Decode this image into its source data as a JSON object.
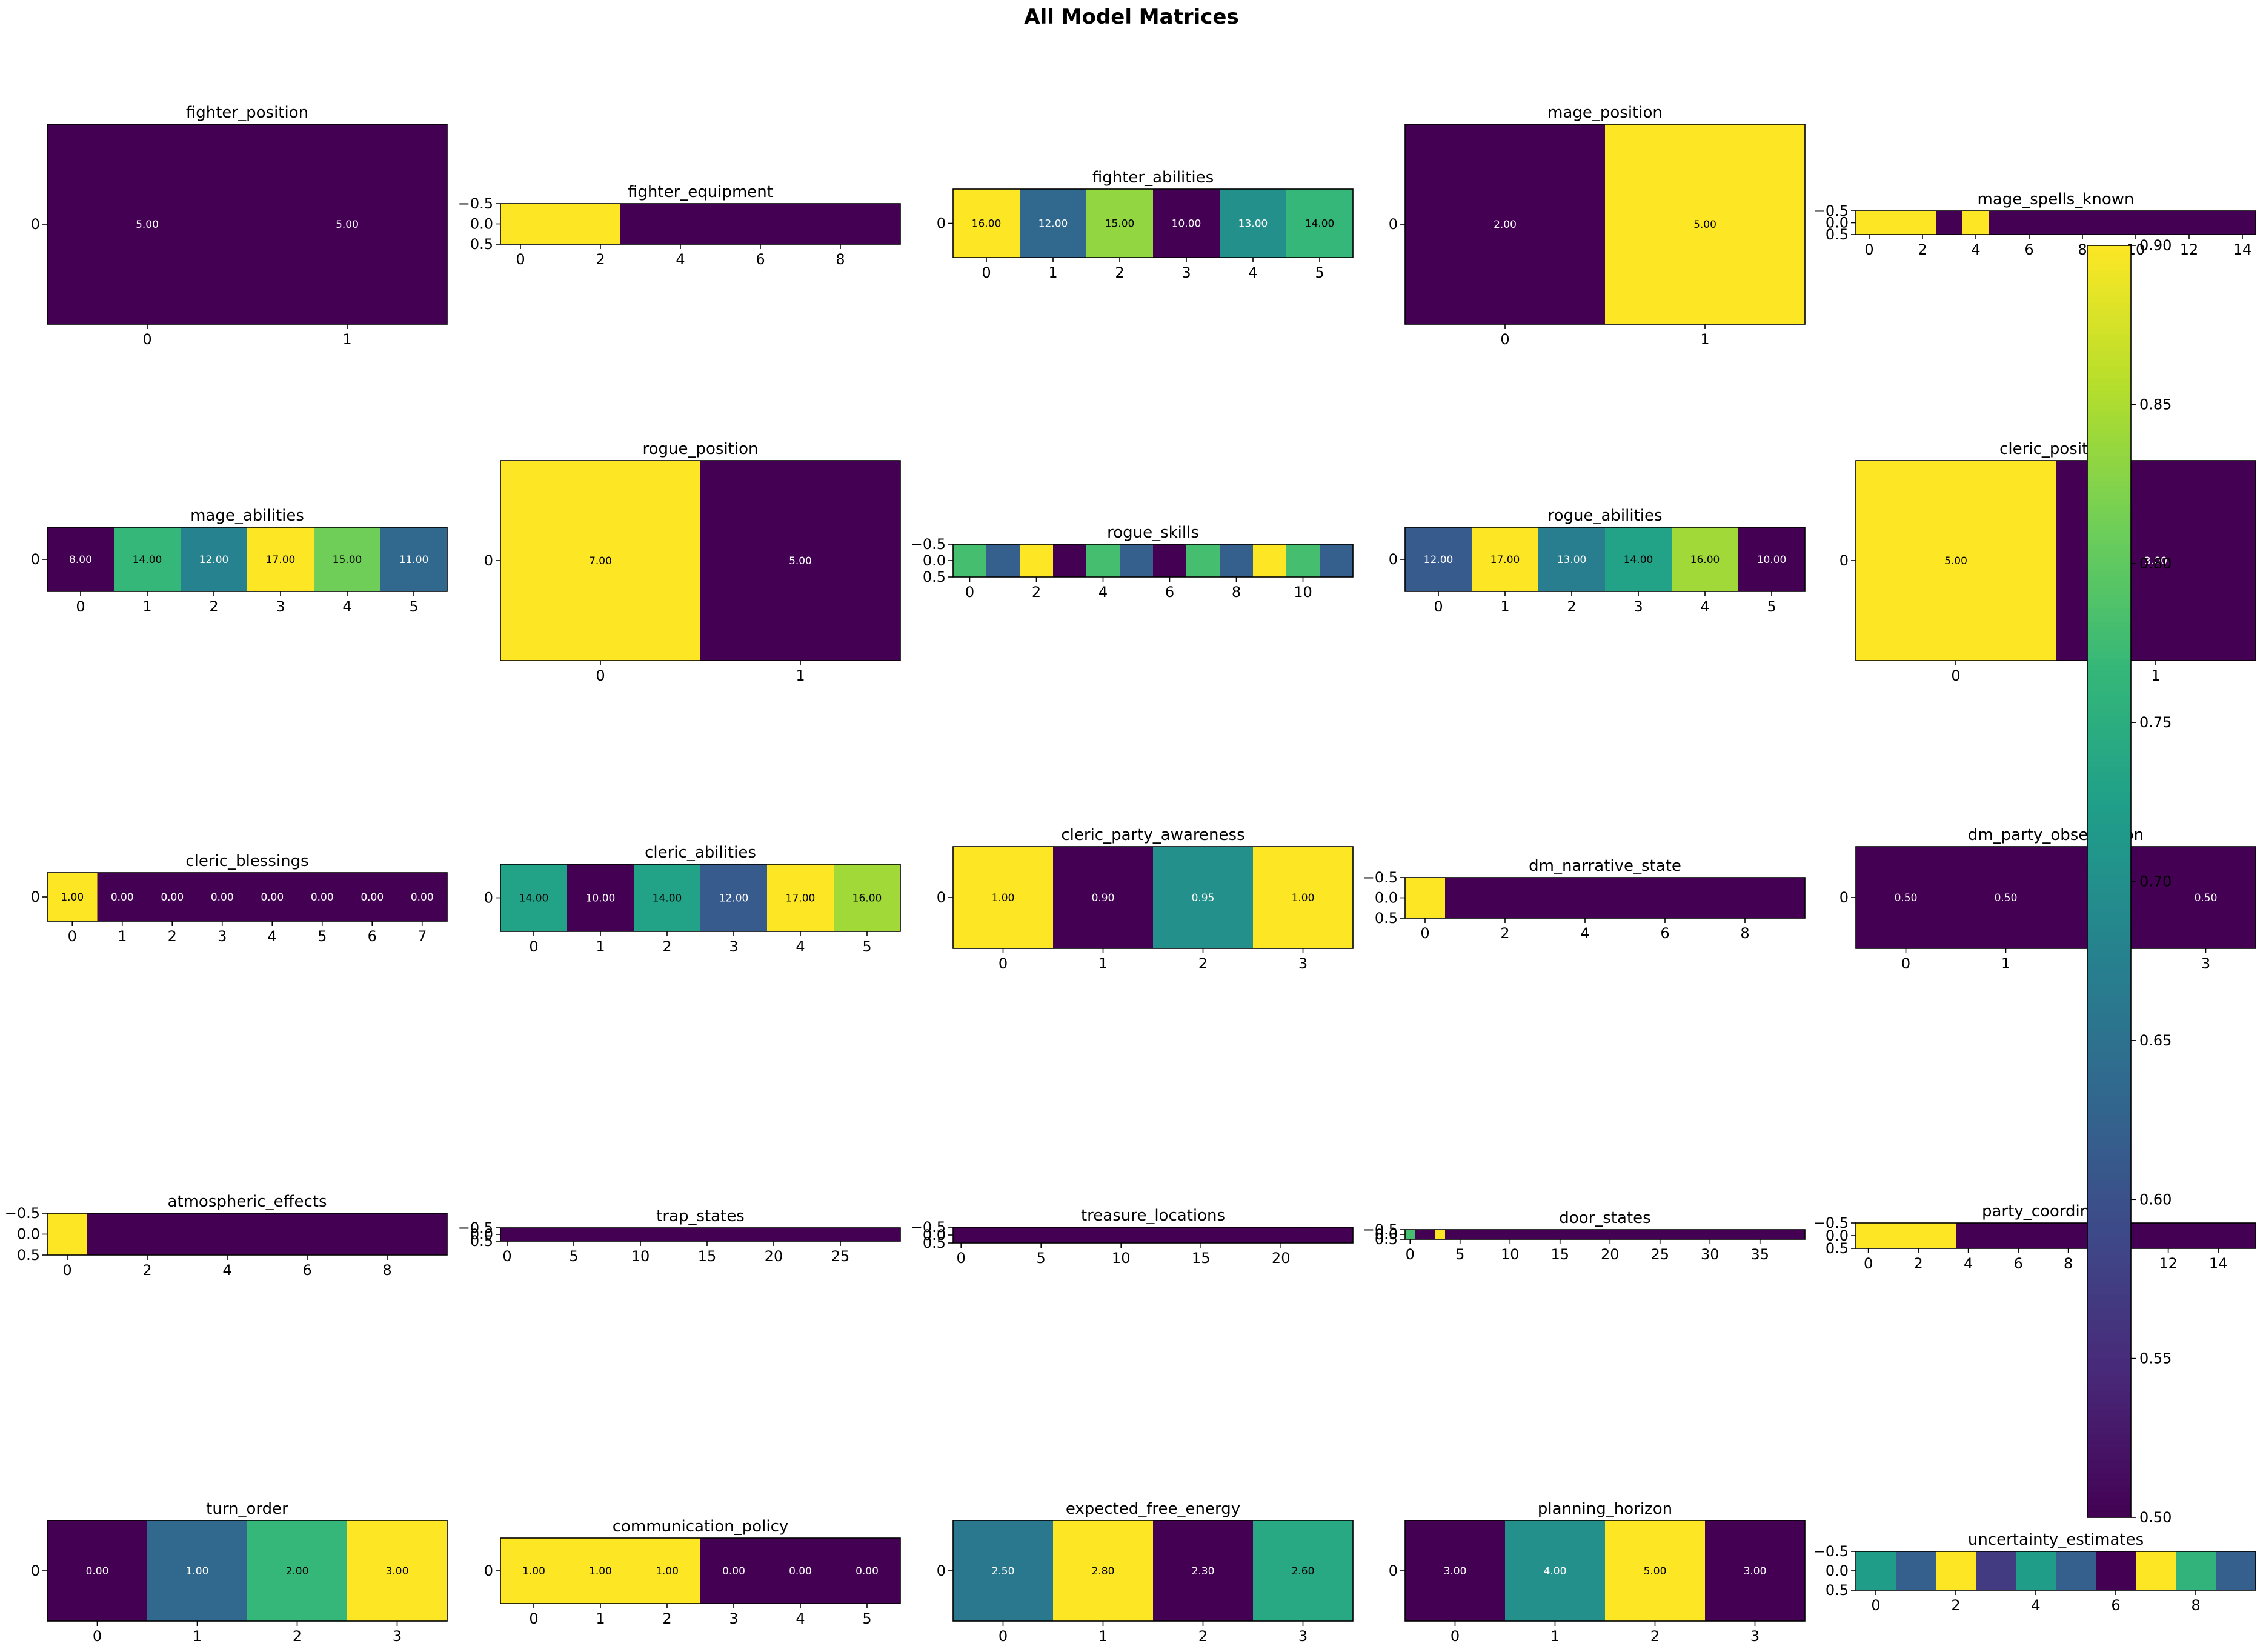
{
  "figure": {
    "title": "All Model Matrices"
  },
  "colors": {
    "viridis": [
      "#440154",
      "#482878",
      "#3e4989",
      "#31688e",
      "#26828e",
      "#1f9e89",
      "#35b779",
      "#6ece58",
      "#b5de2b",
      "#fde725"
    ]
  },
  "colorbar": {
    "min": 0.5,
    "max": 0.9,
    "ticks": [
      "0.50",
      "0.55",
      "0.60",
      "0.65",
      "0.70",
      "0.75",
      "0.80",
      "0.85",
      "0.90"
    ]
  },
  "chart_data": [
    {
      "type": "heatmap",
      "title": "fighter_position",
      "values": [
        [
          5,
          5
        ]
      ],
      "vmin": 5,
      "vmax": 5,
      "show_labels": true,
      "yticks": [
        "0"
      ],
      "xticks": [
        "0",
        "1"
      ]
    },
    {
      "type": "heatmap",
      "title": "fighter_equipment",
      "values": [
        [
          1,
          1,
          1,
          0,
          0,
          0,
          0,
          0,
          0,
          0
        ]
      ],
      "vmin": 0,
      "vmax": 1,
      "show_labels": false,
      "yticks": [
        "−0.5",
        "0.0",
        "0.5"
      ],
      "xticks": [
        "0",
        "2",
        "4",
        "6",
        "8"
      ]
    },
    {
      "type": "heatmap",
      "title": "fighter_abilities",
      "values": [
        [
          16,
          12,
          15,
          10,
          13,
          14
        ]
      ],
      "vmin": 10,
      "vmax": 16,
      "show_labels": true,
      "yticks": [
        "0"
      ],
      "xticks": [
        "0",
        "1",
        "2",
        "3",
        "4",
        "5"
      ]
    },
    {
      "type": "heatmap",
      "title": "mage_position",
      "values": [
        [
          2,
          5
        ]
      ],
      "vmin": 2,
      "vmax": 5,
      "show_labels": true,
      "yticks": [
        "0"
      ],
      "xticks": [
        "0",
        "1"
      ]
    },
    {
      "type": "heatmap",
      "title": "mage_spells_known",
      "values": [
        [
          1,
          1,
          1,
          0,
          1,
          0,
          0,
          0,
          0,
          0,
          0,
          0,
          0,
          0,
          0
        ]
      ],
      "vmin": 0,
      "vmax": 1,
      "show_labels": false,
      "yticks": [
        "−0.5",
        "0.0",
        "0.5"
      ],
      "xticks": [
        "0",
        "2",
        "4",
        "6",
        "8",
        "10",
        "12",
        "14"
      ]
    },
    {
      "type": "heatmap",
      "title": "mage_abilities",
      "values": [
        [
          8,
          14,
          12,
          17,
          15,
          11
        ]
      ],
      "vmin": 8,
      "vmax": 17,
      "show_labels": true,
      "yticks": [
        "0"
      ],
      "xticks": [
        "0",
        "1",
        "2",
        "3",
        "4",
        "5"
      ]
    },
    {
      "type": "heatmap",
      "title": "rogue_position",
      "values": [
        [
          7,
          5
        ]
      ],
      "vmin": 5,
      "vmax": 7,
      "show_labels": true,
      "yticks": [
        "0"
      ],
      "xticks": [
        "0",
        "1"
      ]
    },
    {
      "type": "heatmap",
      "title": "rogue_skills",
      "values": [
        [
          0.7,
          0.3,
          1,
          0,
          0.7,
          0.3,
          0,
          0.7,
          0.3,
          1,
          0.7,
          0.3
        ]
      ],
      "vmin": 0,
      "vmax": 1,
      "show_labels": false,
      "yticks": [
        "−0.5",
        "0.0",
        "0.5"
      ],
      "xticks": [
        "0",
        "2",
        "4",
        "6",
        "8",
        "10"
      ]
    },
    {
      "type": "heatmap",
      "title": "rogue_abilities",
      "values": [
        [
          12,
          17,
          13,
          14,
          16,
          10
        ]
      ],
      "vmin": 10,
      "vmax": 17,
      "show_labels": true,
      "yticks": [
        "0"
      ],
      "xticks": [
        "0",
        "1",
        "2",
        "3",
        "4",
        "5"
      ]
    },
    {
      "type": "heatmap",
      "title": "cleric_position",
      "values": [
        [
          5,
          3
        ]
      ],
      "vmin": 3,
      "vmax": 5,
      "show_labels": true,
      "yticks": [
        "0"
      ],
      "xticks": [
        "0",
        "1"
      ]
    },
    {
      "type": "heatmap",
      "title": "cleric_blessings",
      "values": [
        [
          1,
          0,
          0,
          0,
          0,
          0,
          0,
          0
        ]
      ],
      "vmin": 0,
      "vmax": 1,
      "show_labels": true,
      "yticks": [
        "0"
      ],
      "xticks": [
        "0",
        "1",
        "2",
        "3",
        "4",
        "5",
        "6",
        "7"
      ]
    },
    {
      "type": "heatmap",
      "title": "cleric_abilities",
      "values": [
        [
          14,
          10,
          14,
          12,
          17,
          16
        ]
      ],
      "vmin": 10,
      "vmax": 17,
      "show_labels": true,
      "yticks": [
        "0"
      ],
      "xticks": [
        "0",
        "1",
        "2",
        "3",
        "4",
        "5"
      ]
    },
    {
      "type": "heatmap",
      "title": "cleric_party_awareness",
      "values": [
        [
          1,
          0.9,
          0.95,
          1
        ]
      ],
      "vmin": 0.9,
      "vmax": 1,
      "show_labels": true,
      "yticks": [
        "0"
      ],
      "xticks": [
        "0",
        "1",
        "2",
        "3"
      ]
    },
    {
      "type": "heatmap",
      "title": "dm_narrative_state",
      "values": [
        [
          1,
          0,
          0,
          0,
          0,
          0,
          0,
          0,
          0,
          0
        ]
      ],
      "vmin": 0,
      "vmax": 1,
      "show_labels": false,
      "yticks": [
        "−0.5",
        "0.0",
        "0.5"
      ],
      "xticks": [
        "0",
        "2",
        "4",
        "6",
        "8"
      ]
    },
    {
      "type": "heatmap",
      "title": "dm_party_observation",
      "values": [
        [
          0.5,
          0.5,
          0.5,
          0.5
        ]
      ],
      "vmin": 0.5,
      "vmax": 0.5,
      "show_labels": true,
      "yticks": [
        "0"
      ],
      "xticks": [
        "0",
        "1",
        "2",
        "3"
      ]
    },
    {
      "type": "heatmap",
      "title": "atmospheric_effects",
      "values": [
        [
          1,
          0,
          0,
          0,
          0,
          0,
          0,
          0,
          0,
          0
        ]
      ],
      "vmin": 0,
      "vmax": 1,
      "show_labels": false,
      "yticks": [
        "−0.5",
        "0.0",
        "0.5"
      ],
      "xticks": [
        "0",
        "2",
        "4",
        "6",
        "8"
      ]
    },
    {
      "type": "heatmap",
      "title": "trap_states",
      "values": [
        [
          0,
          0,
          0,
          0,
          0,
          0,
          0,
          0,
          0,
          0,
          0,
          0,
          0,
          0,
          0,
          0,
          0,
          0,
          0,
          0,
          0,
          0,
          0,
          0,
          0,
          0,
          0,
          0,
          0,
          0
        ]
      ],
      "vmin": 0,
      "vmax": 1,
      "show_labels": false,
      "yticks": [
        "−0.5",
        "0.0",
        "0.5"
      ],
      "xticks": [
        "0",
        "5",
        "10",
        "15",
        "20",
        "25"
      ]
    },
    {
      "type": "heatmap",
      "title": "treasure_locations",
      "values": [
        [
          0,
          0,
          0,
          0,
          0,
          0,
          0,
          0,
          0,
          0,
          0,
          0,
          0,
          0,
          0,
          0,
          0,
          0,
          0,
          0,
          0,
          0,
          0,
          0,
          0
        ]
      ],
      "vmin": 0,
      "vmax": 1,
      "show_labels": false,
      "yticks": [
        "−0.5",
        "0.0",
        "0.5"
      ],
      "xticks": [
        "0",
        "5",
        "10",
        "15",
        "20"
      ]
    },
    {
      "type": "heatmap",
      "title": "door_states",
      "values": [
        [
          0.7,
          0,
          0,
          1,
          0,
          0,
          0,
          0,
          0,
          0,
          0,
          0,
          0,
          0,
          0,
          0,
          0,
          0,
          0,
          0,
          0,
          0,
          0,
          0,
          0,
          0,
          0,
          0,
          0,
          0,
          0,
          0,
          0,
          0,
          0,
          0,
          0,
          0,
          0,
          0
        ]
      ],
      "vmin": 0,
      "vmax": 1,
      "show_labels": false,
      "yticks": [
        "−0.5",
        "0.0",
        "0.5"
      ],
      "xticks": [
        "0",
        "5",
        "10",
        "15",
        "20",
        "25",
        "30",
        "35"
      ]
    },
    {
      "type": "heatmap",
      "title": "party_coordination",
      "values": [
        [
          1,
          1,
          1,
          1,
          0,
          0,
          0,
          0,
          0,
          0,
          0,
          0,
          0,
          0,
          0,
          0
        ]
      ],
      "vmin": 0,
      "vmax": 1,
      "show_labels": false,
      "yticks": [
        "−0.5",
        "0.0",
        "0.5"
      ],
      "xticks": [
        "0",
        "2",
        "4",
        "6",
        "8",
        "10",
        "12",
        "14"
      ]
    },
    {
      "type": "heatmap",
      "title": "turn_order",
      "values": [
        [
          0,
          1,
          2,
          3
        ]
      ],
      "vmin": 0,
      "vmax": 3,
      "show_labels": true,
      "yticks": [
        "0"
      ],
      "xticks": [
        "0",
        "1",
        "2",
        "3"
      ]
    },
    {
      "type": "heatmap",
      "title": "communication_policy",
      "values": [
        [
          1,
          1,
          1,
          0,
          0,
          0
        ]
      ],
      "vmin": 0,
      "vmax": 1,
      "show_labels": true,
      "yticks": [
        "0"
      ],
      "xticks": [
        "0",
        "1",
        "2",
        "3",
        "4",
        "5"
      ]
    },
    {
      "type": "heatmap",
      "title": "expected_free_energy",
      "values": [
        [
          2.5,
          2.8,
          2.3,
          2.6
        ]
      ],
      "vmin": 2.3,
      "vmax": 2.8,
      "show_labels": true,
      "yticks": [
        "0"
      ],
      "xticks": [
        "0",
        "1",
        "2",
        "3"
      ]
    },
    {
      "type": "heatmap",
      "title": "planning_horizon",
      "values": [
        [
          3,
          4,
          5,
          3
        ]
      ],
      "vmin": 3,
      "vmax": 5,
      "show_labels": true,
      "yticks": [
        "0"
      ],
      "xticks": [
        "0",
        "1",
        "2",
        "3"
      ]
    },
    {
      "type": "heatmap",
      "title": "uncertainty_estimates",
      "values": [
        [
          0.72,
          0.62,
          0.9,
          0.57,
          0.72,
          0.62,
          0.5,
          0.9,
          0.76,
          0.62
        ]
      ],
      "vmin": 0.5,
      "vmax": 0.9,
      "show_labels": false,
      "yticks": [
        "−0.5",
        "0.0",
        "0.5"
      ],
      "xticks": [
        "0",
        "2",
        "4",
        "6",
        "8"
      ]
    }
  ]
}
